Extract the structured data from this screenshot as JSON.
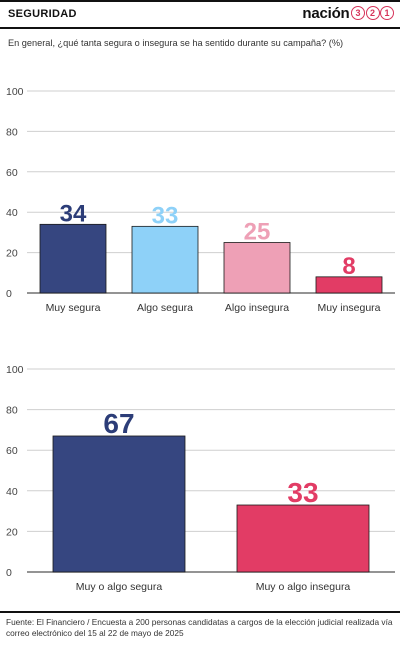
{
  "header": {
    "section": "SEGURIDAD",
    "logo_word": "nación",
    "logo_digits": [
      "3",
      "2",
      "1"
    ]
  },
  "question": "En general, ¿qué tanta segura o insegura se ha sentido durante su campaña? (%)",
  "chart_data": [
    {
      "type": "bar",
      "categories": [
        "Muy segura",
        "Algo segura",
        "Algo insegura",
        "Muy insegura"
      ],
      "values": [
        34,
        33,
        25,
        8
      ],
      "value_labels": [
        "34",
        "33",
        "25",
        "8"
      ],
      "colors": [
        "#364680",
        "#8ed1f8",
        "#eea0b6",
        "#e23c65"
      ],
      "label_colors": [
        "#2c3d78",
        "#8ed1f8",
        "#eea0b6",
        "#e23c65"
      ],
      "yticks": [
        "0",
        "20",
        "40",
        "60",
        "80",
        "100"
      ],
      "ylim": [
        0,
        100
      ],
      "grid": true
    },
    {
      "type": "bar",
      "categories": [
        "Muy o algo segura",
        "Muy o algo insegura"
      ],
      "values": [
        67,
        33
      ],
      "value_labels": [
        "67",
        "33"
      ],
      "colors": [
        "#364680",
        "#e23c65"
      ],
      "label_colors": [
        "#2c3d78",
        "#e23c65"
      ],
      "yticks": [
        "0",
        "20",
        "40",
        "60",
        "80",
        "100"
      ],
      "ylim": [
        0,
        100
      ],
      "grid": true
    }
  ],
  "source": "Fuente: El Financiero / Encuesta a 200 personas candidatas a cargos de la elección judicial realizada vía correo electrónico del 15 al 22 de mayo de 2025"
}
